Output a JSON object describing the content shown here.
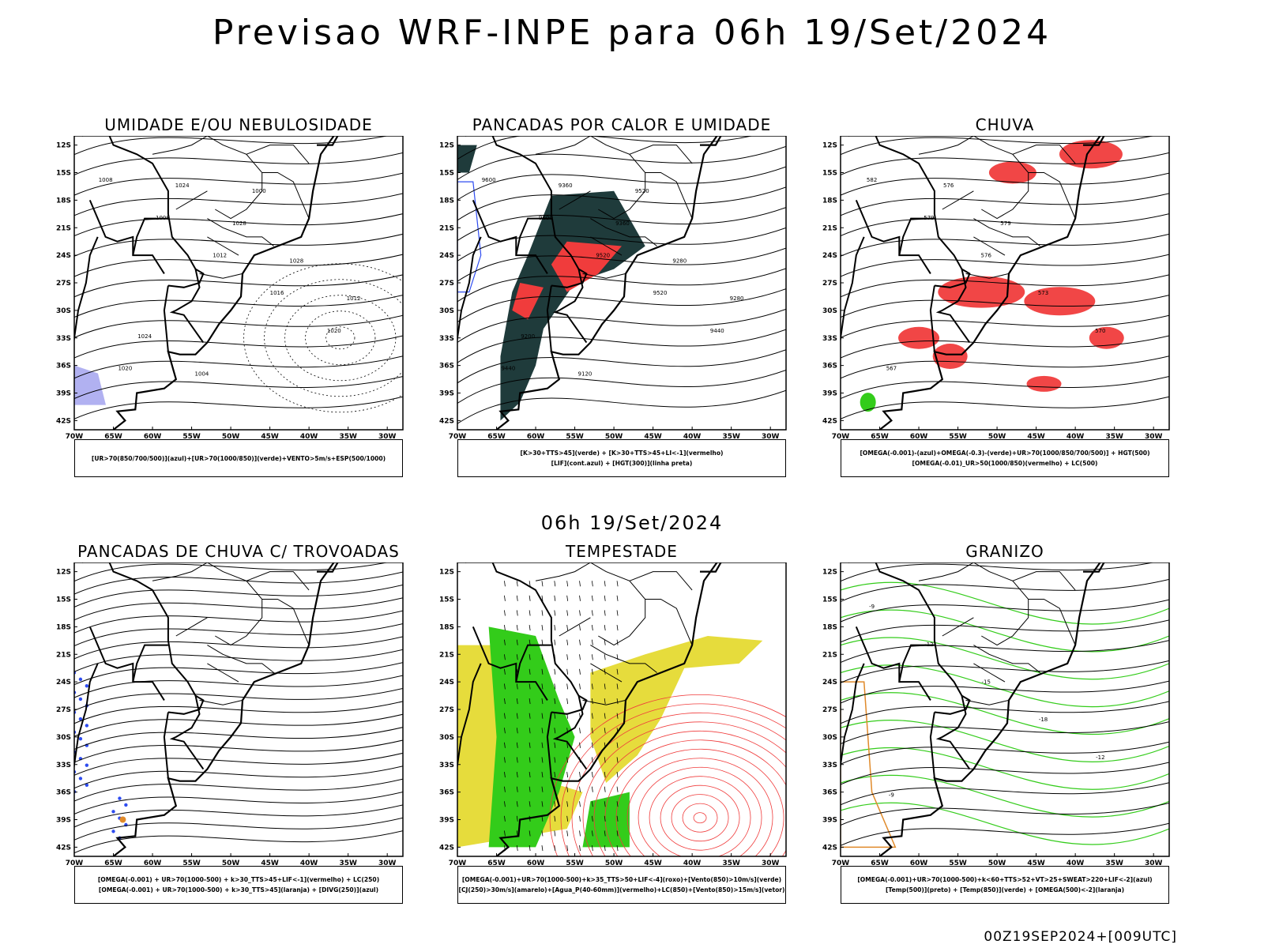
{
  "header": {
    "title": "Previsao WRF-INPE  para 06h 19/Set/2024"
  },
  "mid": {
    "title": "06h 19/Set/2024"
  },
  "footer": {
    "run_label": "00Z19SEP2024+[009UTC]"
  },
  "axes": {
    "lat_ticks": [
      "12S",
      "15S",
      "18S",
      "21S",
      "24S",
      "27S",
      "30S",
      "33S",
      "36S",
      "39S",
      "42S"
    ],
    "lon_ticks": [
      "70W",
      "65W",
      "60W",
      "55W",
      "50W",
      "45W",
      "40W",
      "35W",
      "30W"
    ]
  },
  "colors": {
    "red": "#f03c3c",
    "green": "#33cc1a",
    "blue": "#2e4cf0",
    "darkteal": "#1f3b3b",
    "yellow": "#e6dc3c",
    "orange": "#e08a2a",
    "lavender": "#a8a8f0"
  },
  "panels": [
    {
      "title": "UMIDADE E/OU NEBULOSIDADE",
      "legend": [
        "[UR>70(850/700/500)](azul)+[UR>70(1000/850)](verde)+VENTO>5m/s+ESP(500/1000)"
      ],
      "labels": [
        "1008",
        "1008",
        "1012",
        "1016",
        "1020",
        "1020",
        "1024",
        "1028",
        "1028",
        "1012",
        "1024",
        "1004",
        "1000"
      ]
    },
    {
      "title": "PANCADAS POR CALOR E UMIDADE",
      "legend": [
        "[K>30+TTS>45](verde) + [K>30+TTS>45+LI<-1](vermelho)",
        "[LIF](cont.azul) + [HGT(300)](linha preta)"
      ],
      "labels": [
        "9600",
        "9600",
        "9520",
        "9520",
        "9440",
        "9440",
        "9360",
        "9360",
        "9280",
        "9280",
        "9200",
        "9120",
        "9520"
      ]
    },
    {
      "title": "CHUVA",
      "legend": [
        "[OMEGA(-0.001)-(azul)+OMEGA(-0.3)-(verde)+UR>70(1000/850/700/500)] + HGT(500)",
        "[OMEGA(-0.01)_UR>50(1000/850)(vermelho) + LC(500)"
      ],
      "labels": [
        "582",
        "579",
        "576",
        "573",
        "570",
        "567",
        "576",
        "579"
      ]
    },
    {
      "title": "PANCADAS DE CHUVA C/ TROVOADAS",
      "legend": [
        "[OMEGA(-0.001) + UR>70(1000-500) + k>30_TTS>45+LIF<-1](vermelho) + LC(250)",
        "[OMEGA(-0.001) + UR>70(1000-500) + k>30_TTS>45](laranja) + [DIVG(250)](azul)"
      ],
      "labels": []
    },
    {
      "title": "TEMPESTADE",
      "legend": [
        "[OMEGA(-0.001)+UR>70(1000-500)+k>35_TTS>50+LIF<-4](roxo)+[Vento(850)>10m/s](verde)",
        "[CJ(250)>30m/s](amarelo)+[Agua_P(40-60mm)](vermelho)+LC(850)+[Vento(850)>15m/s](vetor)"
      ],
      "labels": []
    },
    {
      "title": "GRANIZO",
      "legend": [
        "[OMEGA(-0.001)+UR>70(1000-500)+k<60+TTS>52+VT>25+SWEAT>220+LIF<-2](azul)",
        "[Temp(500)](preto) + [Temp(850)](verde) + [OMEGA(500)<-2](laranja)"
      ],
      "labels": [
        "-9",
        "-12",
        "-15",
        "-18",
        "-12",
        "-9"
      ]
    }
  ]
}
